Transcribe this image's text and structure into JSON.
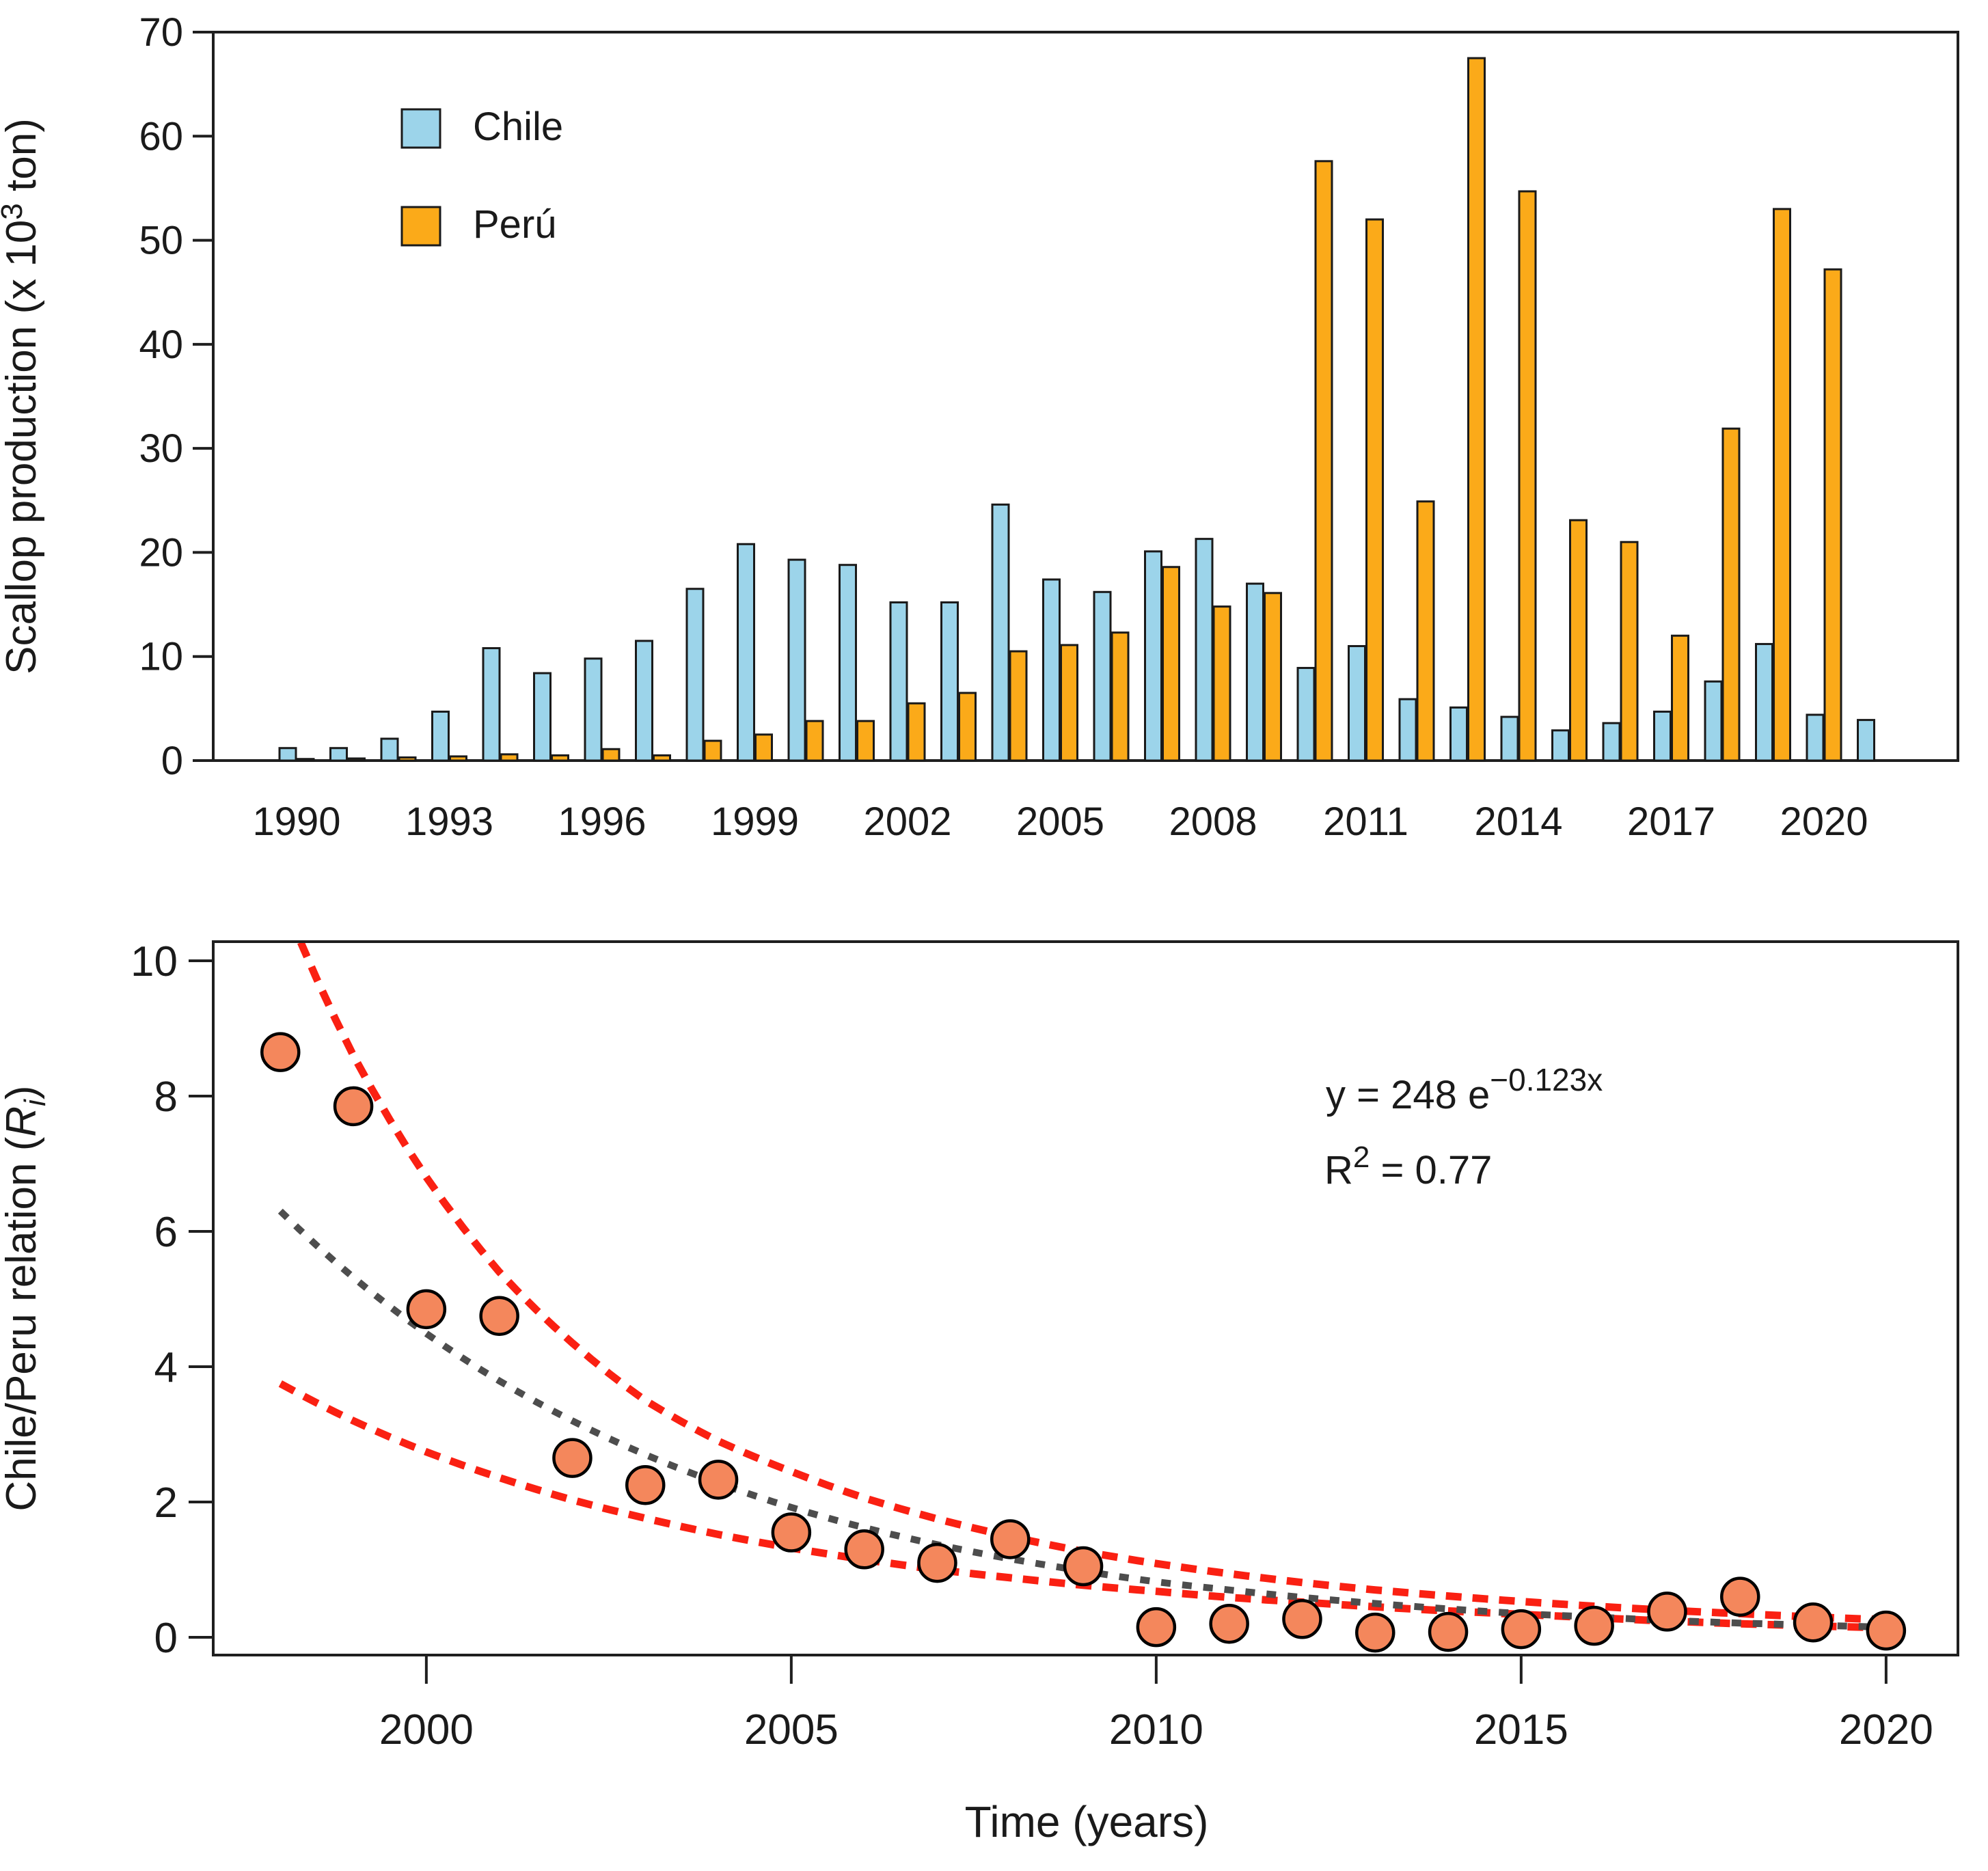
{
  "colors": {
    "chile": "#9cd4ea",
    "peru": "#fbaa19",
    "marker": "#f4875c",
    "band": "#fa2012",
    "fit": "#4d4d4d",
    "axis": "#1f1f1f",
    "bar_outline": "#1a1a1a"
  },
  "chart_data": [
    {
      "id": "production",
      "type": "bar",
      "title": "",
      "ylabel_parts": {
        "pre": "Scallop production (x 10",
        "sup": "3",
        "post": " ton)"
      },
      "xlabel": "",
      "ylim": [
        0,
        70
      ],
      "yticks": [
        0,
        10,
        20,
        30,
        40,
        50,
        60,
        70
      ],
      "xtick_labeled_years": [
        1990,
        1993,
        1996,
        1999,
        2002,
        2005,
        2008,
        2011,
        2014,
        2017,
        2020
      ],
      "categories": [
        1990,
        1991,
        1992,
        1993,
        1994,
        1995,
        1996,
        1997,
        1998,
        1999,
        2000,
        2001,
        2002,
        2003,
        2004,
        2005,
        2006,
        2007,
        2008,
        2009,
        2010,
        2011,
        2012,
        2013,
        2014,
        2015,
        2016,
        2017,
        2018,
        2019,
        2020,
        2021
      ],
      "series": [
        {
          "name": "Chile",
          "values": [
            1.2,
            1.2,
            2.1,
            4.7,
            10.8,
            8.4,
            9.8,
            11.5,
            16.5,
            20.8,
            19.3,
            18.8,
            15.2,
            15.2,
            24.6,
            17.4,
            16.2,
            20.1,
            21.3,
            17.0,
            8.9,
            11.0,
            5.9,
            5.1,
            4.2,
            2.9,
            3.6,
            4.7,
            7.6,
            11.2,
            4.4,
            3.9
          ]
        },
        {
          "name": "Perú",
          "values": [
            0.15,
            0.2,
            0.3,
            0.4,
            0.6,
            0.5,
            1.1,
            0.5,
            1.9,
            2.5,
            3.8,
            3.8,
            5.5,
            6.5,
            10.5,
            11.1,
            12.3,
            18.6,
            14.8,
            16.1,
            57.6,
            52.0,
            24.9,
            67.5,
            54.7,
            23.1,
            21.0,
            12.0,
            31.9,
            53.0,
            47.2,
            null
          ]
        }
      ],
      "legend_position": "top-left-inside",
      "grid": false
    },
    {
      "id": "ratio",
      "type": "scatter",
      "ylabel_parts": {
        "pre": "Chile/Peru relation (",
        "var": "R",
        "sub": "i",
        "post": ")"
      },
      "xlabel": "Time (years)",
      "ylim": [
        0,
        10
      ],
      "yticks": [
        0,
        2,
        4,
        6,
        8,
        10
      ],
      "xticks": [
        2000,
        2005,
        2010,
        2015,
        2020
      ],
      "points": {
        "x": [
          1998,
          1999,
          2000,
          2001,
          2002,
          2003,
          2004,
          2005,
          2006,
          2007,
          2008,
          2009,
          2010,
          2011,
          2012,
          2013,
          2014,
          2015,
          2016,
          2017,
          2018,
          2019,
          2020
        ],
        "y": [
          8.65,
          7.85,
          4.85,
          4.75,
          2.65,
          2.25,
          2.33,
          1.55,
          1.3,
          1.1,
          1.45,
          1.05,
          0.15,
          0.2,
          0.27,
          0.07,
          0.08,
          0.12,
          0.17,
          0.38,
          0.6,
          0.22,
          0.1
        ]
      },
      "fit_curve": {
        "x": [
          1998,
          1999,
          2000,
          2001,
          2002,
          2003,
          2004,
          2005,
          2006,
          2007,
          2008,
          2009,
          2010,
          2011,
          2012,
          2013,
          2014,
          2015,
          2016,
          2017,
          2018,
          2019,
          2020
        ],
        "y": [
          6.3,
          5.32,
          4.49,
          3.79,
          3.2,
          2.7,
          2.28,
          1.92,
          1.62,
          1.37,
          1.16,
          0.98,
          0.82,
          0.7,
          0.59,
          0.5,
          0.42,
          0.35,
          0.3,
          0.25,
          0.21,
          0.18,
          0.15
        ]
      },
      "band_upper": {
        "x": [
          1998,
          1999,
          2000,
          2001,
          2002,
          2003,
          2004,
          2005,
          2006,
          2007,
          2008,
          2009,
          2010,
          2011,
          2012,
          2013,
          2014,
          2015,
          2016,
          2017,
          2018,
          2019,
          2020
        ],
        "y": [
          11.0,
          8.6,
          6.8,
          5.4,
          4.35,
          3.5,
          2.9,
          2.45,
          2.06,
          1.75,
          1.49,
          1.27,
          1.09,
          0.94,
          0.81,
          0.7,
          0.61,
          0.53,
          0.46,
          0.4,
          0.35,
          0.3,
          0.26
        ]
      },
      "band_lower": {
        "x": [
          1998,
          1999,
          2000,
          2001,
          2002,
          2003,
          2004,
          2005,
          2006,
          2007,
          2008,
          2009,
          2010,
          2011,
          2012,
          2013,
          2014,
          2015,
          2016,
          2017,
          2018,
          2019,
          2020
        ],
        "y": [
          3.75,
          3.2,
          2.74,
          2.36,
          2.03,
          1.76,
          1.52,
          1.32,
          1.15,
          1.0,
          0.88,
          0.77,
          0.68,
          0.59,
          0.52,
          0.45,
          0.39,
          0.34,
          0.29,
          0.24,
          0.2,
          0.17,
          0.14
        ]
      },
      "annotation": {
        "line1_base": "y = 248 e",
        "line1_sup": "−0.123x",
        "line2_base": "R",
        "line2_sup": "2",
        "line2_rest": " = 0.77"
      },
      "grid": false,
      "legend_position": "none"
    }
  ]
}
